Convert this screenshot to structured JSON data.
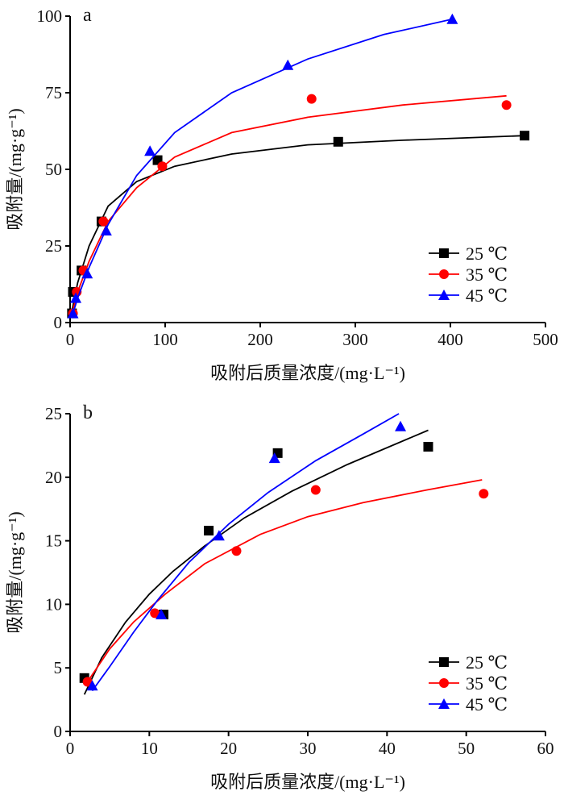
{
  "chart_data": [
    {
      "type": "scatter",
      "panel_label": "a",
      "xlabel": "吸附后质量浓度/(mg·L⁻¹)",
      "ylabel": "吸附量/(mg·g⁻¹)",
      "xlim": [
        0,
        500
      ],
      "ylim": [
        0,
        100
      ],
      "xticks": [
        "0",
        "100",
        "200",
        "300",
        "400",
        "500"
      ],
      "yticks": [
        "0",
        "25",
        "50",
        "75",
        "100"
      ],
      "grid": false,
      "legend_position": "bottom-right",
      "series": [
        {
          "name": "25 ℃",
          "color": "#000000",
          "marker": "square",
          "points": [
            [
              2,
              3
            ],
            [
              3,
              10
            ],
            [
              12,
              17
            ],
            [
              33,
              33
            ],
            [
              92,
              53
            ],
            [
              282,
              59
            ],
            [
              478,
              61
            ]
          ],
          "fit": [
            [
              2,
              4
            ],
            [
              8,
              13
            ],
            [
              20,
              25
            ],
            [
              40,
              38
            ],
            [
              70,
              46
            ],
            [
              110,
              51
            ],
            [
              170,
              55
            ],
            [
              250,
              58
            ],
            [
              350,
              59.5
            ],
            [
              478,
              61
            ]
          ]
        },
        {
          "name": "35 ℃",
          "color": "#ff0000",
          "marker": "circle",
          "points": [
            [
              3,
              3
            ],
            [
              7,
              10
            ],
            [
              14,
              17
            ],
            [
              35,
              33
            ],
            [
              97,
              51
            ],
            [
              254,
              73
            ],
            [
              459,
              71
            ]
          ],
          "fit": [
            [
              2,
              3
            ],
            [
              8,
              10
            ],
            [
              20,
              20
            ],
            [
              40,
              33
            ],
            [
              70,
              44
            ],
            [
              110,
              54
            ],
            [
              170,
              62
            ],
            [
              250,
              67
            ],
            [
              350,
              71
            ],
            [
              459,
              74
            ]
          ]
        },
        {
          "name": "45 ℃",
          "color": "#0000ff",
          "marker": "triangle",
          "points": [
            [
              3,
              3
            ],
            [
              6,
              8
            ],
            [
              18,
              16
            ],
            [
              38,
              30
            ],
            [
              84,
              56
            ],
            [
              229,
              84
            ],
            [
              402,
              99
            ]
          ],
          "fit": [
            [
              2,
              2
            ],
            [
              8,
              8
            ],
            [
              20,
              18
            ],
            [
              40,
              32
            ],
            [
              70,
              48
            ],
            [
              110,
              62
            ],
            [
              170,
              75
            ],
            [
              250,
              86
            ],
            [
              330,
              94
            ],
            [
              402,
              99
            ]
          ]
        }
      ]
    },
    {
      "type": "scatter",
      "panel_label": "b",
      "xlabel": "吸附后质量浓度/(mg·L⁻¹)",
      "ylabel": "吸附量/(mg·g⁻¹)",
      "xlim": [
        0,
        60
      ],
      "ylim": [
        0,
        25
      ],
      "xticks": [
        "0",
        "10",
        "20",
        "30",
        "40",
        "50",
        "60"
      ],
      "yticks": [
        "0",
        "5",
        "10",
        "15",
        "20",
        "25"
      ],
      "grid": false,
      "legend_position": "bottom-right",
      "series": [
        {
          "name": "25 ℃",
          "color": "#000000",
          "marker": "square",
          "points": [
            [
              1.8,
              4.2
            ],
            [
              11.8,
              9.2
            ],
            [
              17.5,
              15.8
            ],
            [
              26.2,
              21.9
            ],
            [
              45.2,
              22.4
            ]
          ],
          "fit": [
            [
              1.8,
              2.9
            ],
            [
              4,
              5.8
            ],
            [
              7,
              8.6
            ],
            [
              10,
              10.8
            ],
            [
              13,
              12.6
            ],
            [
              17,
              14.6
            ],
            [
              22,
              16.8
            ],
            [
              28,
              18.9
            ],
            [
              35,
              21
            ],
            [
              45.2,
              23.7
            ]
          ]
        },
        {
          "name": "35 ℃",
          "color": "#ff0000",
          "marker": "circle",
          "points": [
            [
              2.2,
              3.9
            ],
            [
              10.7,
              9.3
            ],
            [
              21,
              14.2
            ],
            [
              31,
              19.0
            ],
            [
              52.2,
              18.7
            ]
          ],
          "fit": [
            [
              2.2,
              3.9
            ],
            [
              5,
              6.5
            ],
            [
              8,
              8.6
            ],
            [
              12,
              10.8
            ],
            [
              17,
              13.2
            ],
            [
              24,
              15.5
            ],
            [
              30,
              16.9
            ],
            [
              37,
              18
            ],
            [
              45,
              19
            ],
            [
              52,
              19.8
            ]
          ]
        },
        {
          "name": "45 ℃",
          "color": "#0000ff",
          "marker": "triangle",
          "points": [
            [
              2.8,
              3.6
            ],
            [
              11.5,
              9.2
            ],
            [
              18.8,
              15.4
            ],
            [
              25.8,
              21.5
            ],
            [
              41.7,
              24.0
            ]
          ],
          "fit": [
            [
              2.8,
              3.2
            ],
            [
              5,
              5.1
            ],
            [
              8,
              7.8
            ],
            [
              11,
              10.3
            ],
            [
              15,
              13.3
            ],
            [
              20,
              16.3
            ],
            [
              25,
              18.8
            ],
            [
              31,
              21.3
            ],
            [
              37,
              23.4
            ],
            [
              41.5,
              25
            ]
          ]
        }
      ]
    }
  ]
}
